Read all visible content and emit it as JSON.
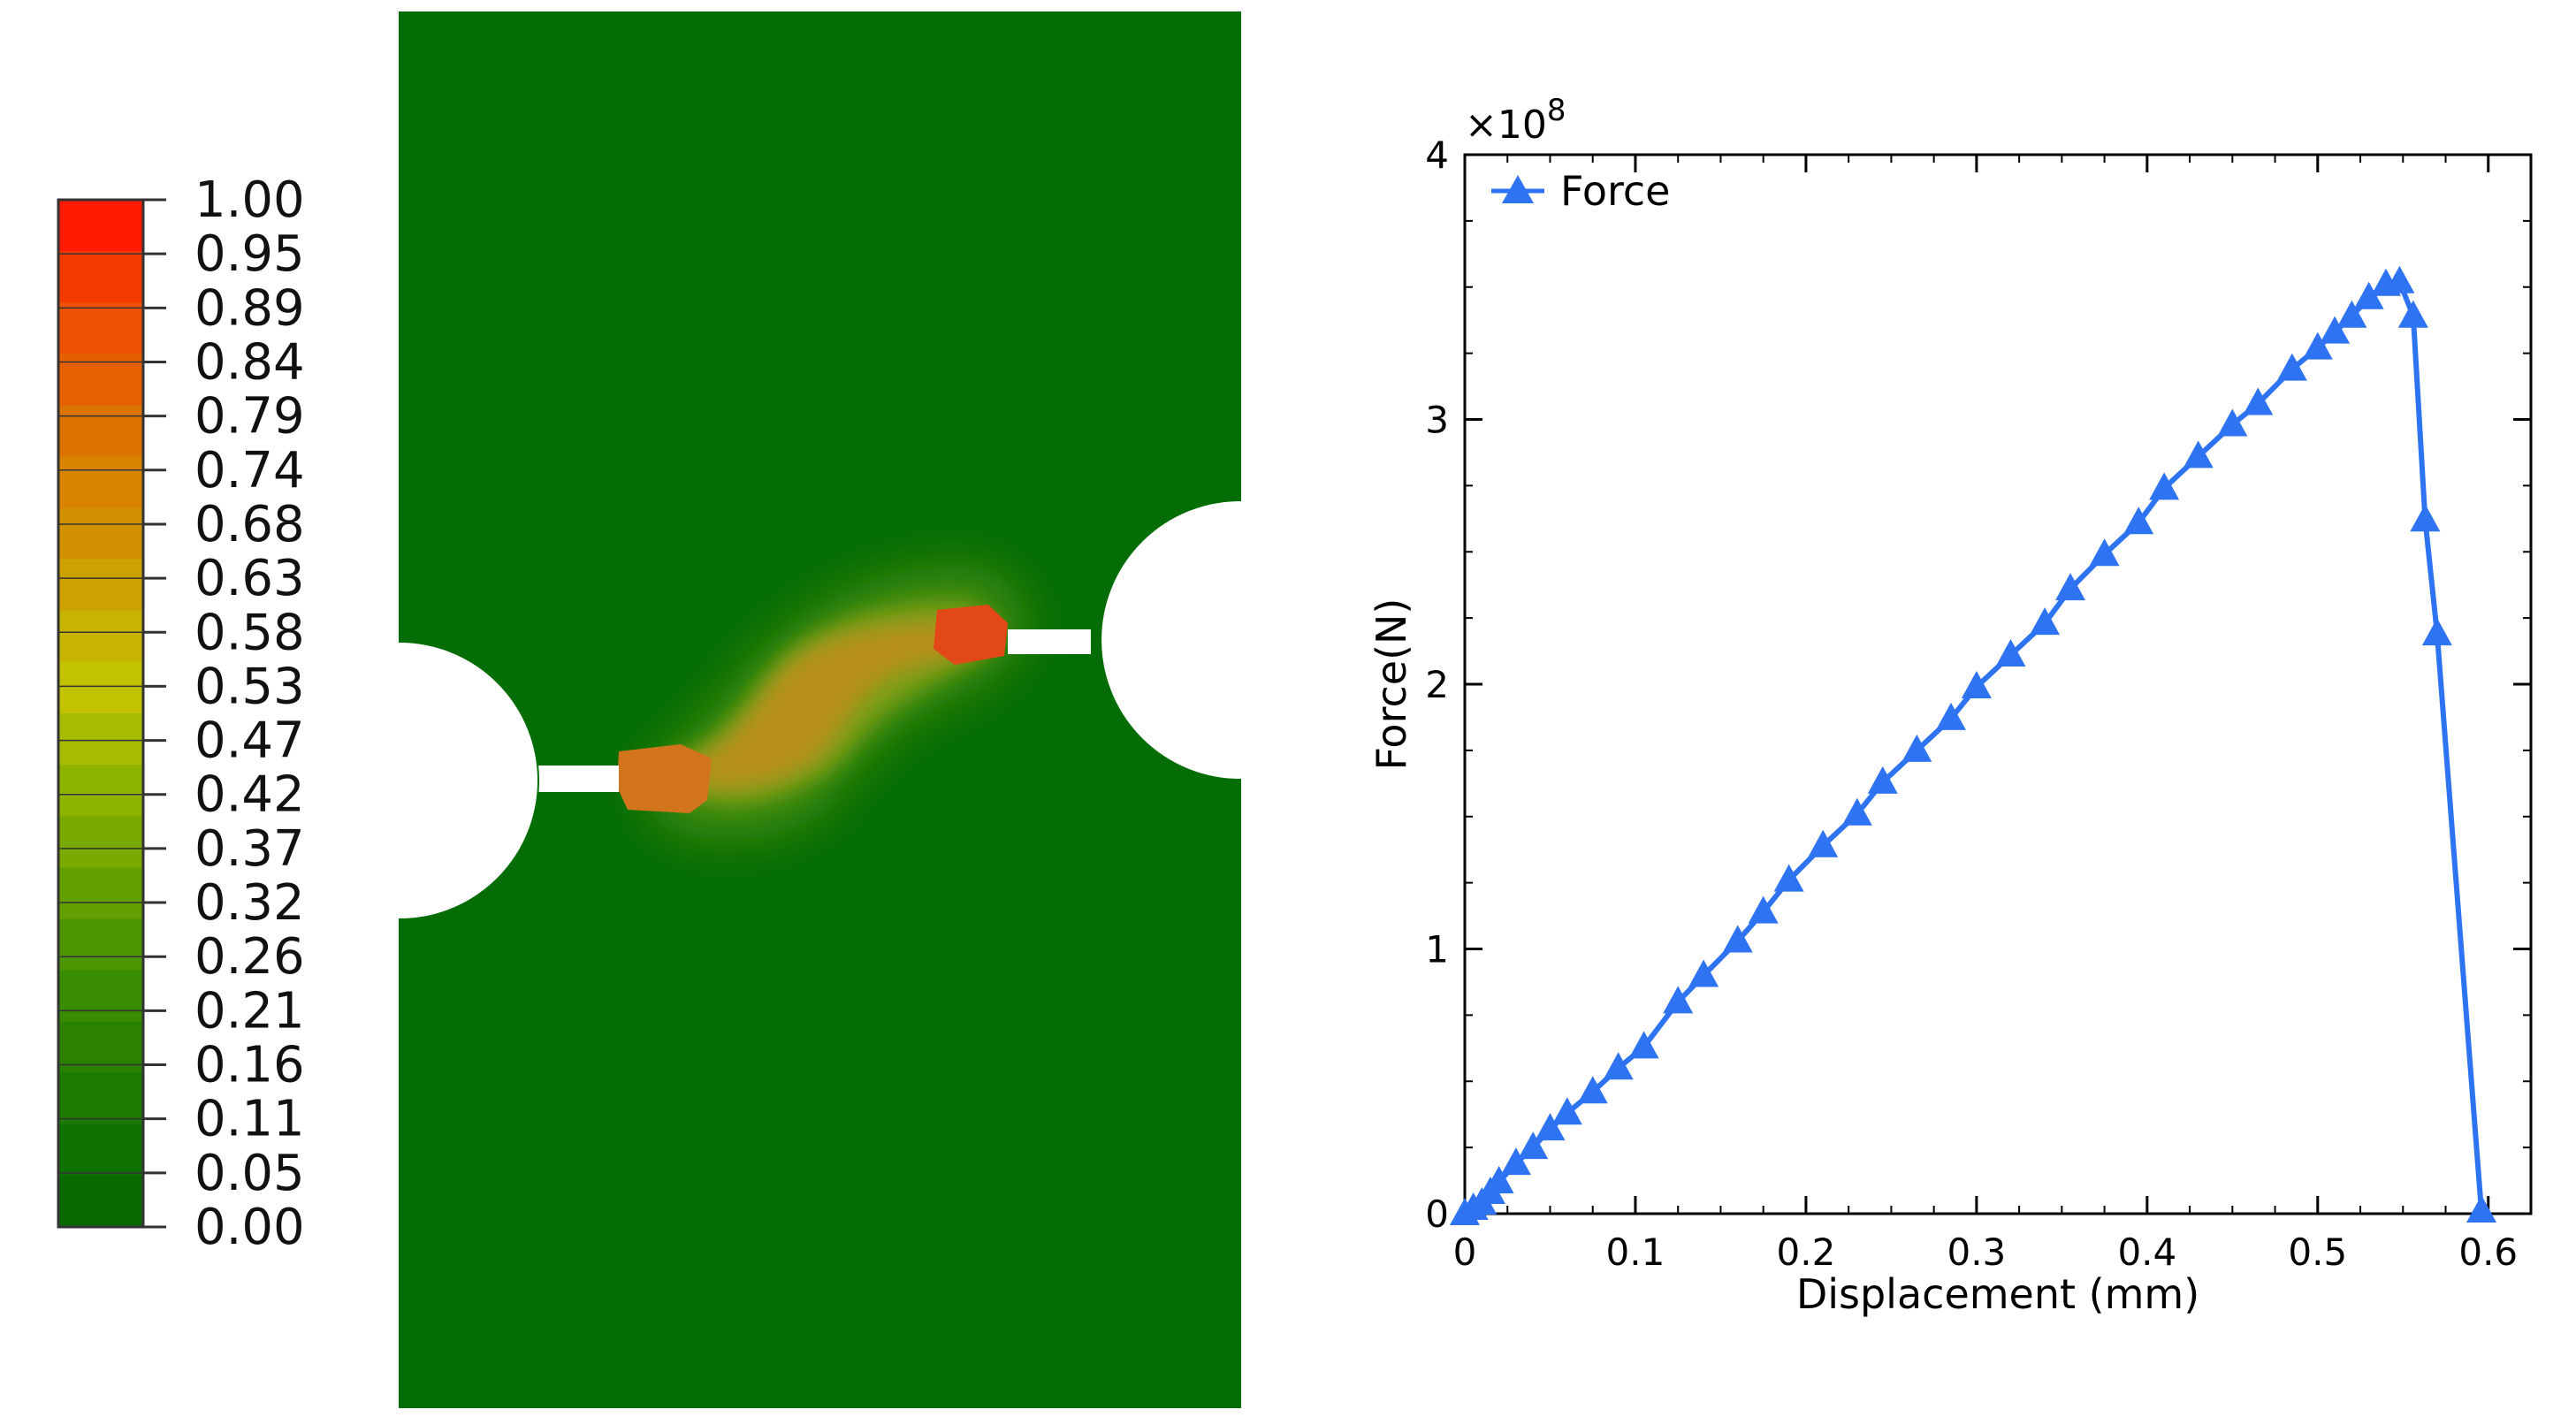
{
  "colorbar": {
    "labels": [
      "1.00",
      "0.95",
      "0.89",
      "0.84",
      "0.79",
      "0.74",
      "0.68",
      "0.63",
      "0.58",
      "0.53",
      "0.47",
      "0.42",
      "0.37",
      "0.32",
      "0.26",
      "0.21",
      "0.16",
      "0.11",
      "0.05",
      "0.00"
    ],
    "colors": [
      "#ff1a00",
      "#f53a00",
      "#ec5000",
      "#e46000",
      "#dc7200",
      "#d88400",
      "#d29200",
      "#cca200",
      "#c6b400",
      "#c2c200",
      "#a6bc00",
      "#8eb400",
      "#78aa00",
      "#62a000",
      "#4e9600",
      "#3a8c00",
      "#2a8200",
      "#1c7a00",
      "#0e7200",
      "#0a6a00"
    ],
    "frame_color": "#333333"
  },
  "contour": {
    "field_color": "#056d05",
    "hotspot_colors": [
      "#3c8a10",
      "#7a9e14",
      "#b8901a",
      "#d2741c",
      "#e24818"
    ]
  },
  "chart_data": {
    "type": "line",
    "title": "",
    "xlabel": "Displacement (mm)",
    "ylabel": "Force(N)",
    "y_multiplier_label": "×10",
    "y_multiplier_exponent": "8",
    "xlim": [
      0,
      0.625
    ],
    "ylim": [
      0,
      4
    ],
    "xticks": [
      0,
      0.1,
      0.2,
      0.3,
      0.4,
      0.5,
      0.6
    ],
    "xtick_labels": [
      "0",
      "0.1",
      "0.2",
      "0.3",
      "0.4",
      "0.5",
      "0.6"
    ],
    "yticks": [
      0,
      1,
      2,
      3,
      4
    ],
    "ytick_labels": [
      "0",
      "1",
      "2",
      "3",
      "4"
    ],
    "x_minor_step": 0.025,
    "y_minor_step": 0.25,
    "legend_position": "top-left",
    "marker": "triangle",
    "series": [
      {
        "name": "Force",
        "color": "#2e74f2",
        "x": [
          0.0,
          0.005,
          0.01,
          0.015,
          0.02,
          0.03,
          0.04,
          0.05,
          0.06,
          0.075,
          0.09,
          0.105,
          0.125,
          0.14,
          0.16,
          0.175,
          0.19,
          0.21,
          0.23,
          0.245,
          0.265,
          0.285,
          0.3,
          0.32,
          0.34,
          0.355,
          0.375,
          0.395,
          0.41,
          0.43,
          0.45,
          0.465,
          0.485,
          0.5,
          0.51,
          0.52,
          0.53,
          0.54,
          0.548,
          0.556,
          0.563,
          0.57,
          0.596
        ],
        "y": [
          0.0,
          0.02,
          0.04,
          0.08,
          0.12,
          0.19,
          0.25,
          0.32,
          0.38,
          0.46,
          0.55,
          0.63,
          0.8,
          0.9,
          1.03,
          1.14,
          1.26,
          1.39,
          1.51,
          1.63,
          1.75,
          1.87,
          1.99,
          2.11,
          2.23,
          2.36,
          2.49,
          2.61,
          2.74,
          2.86,
          2.98,
          3.06,
          3.19,
          3.27,
          3.33,
          3.39,
          3.46,
          3.51,
          3.52,
          3.39,
          2.62,
          2.19,
          0.01
        ]
      }
    ]
  }
}
